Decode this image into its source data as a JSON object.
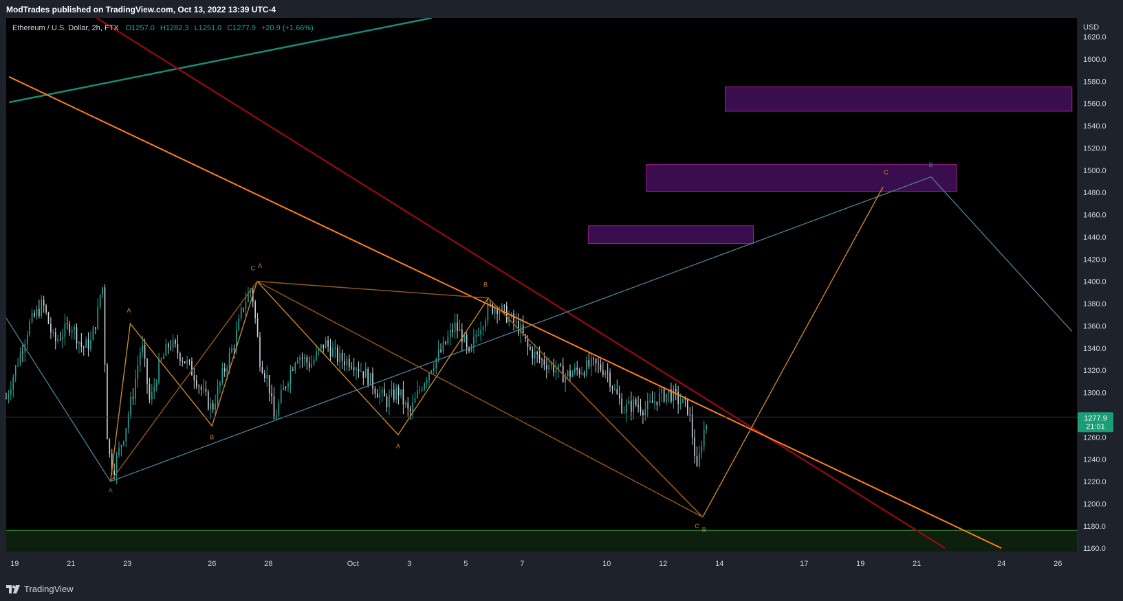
{
  "header": {
    "published_text": "ModTrades published on TradingView.com, Oct 13, 2022 13:39 UTC-4"
  },
  "footer": {
    "brand": "TradingView"
  },
  "colors": {
    "background": "#000000",
    "frame": "#1e222d",
    "up": "#26a69a",
    "down": "#d1d4dc",
    "steel_blue": "#4a7a8c",
    "orange": "#ff7f1a",
    "gold": "#c8882a",
    "dark_red": "#8b0a14",
    "teal": "#1a8a7a",
    "purple_fill": "#3a0e4e",
    "purple_border": "#a01e8c",
    "support_green": "#2f8a2f",
    "last_price_bg": "#1b9e77"
  },
  "chart_data": {
    "type": "candlestick",
    "symbol": "Ethereum / U.S. Dollar",
    "interval": "2h",
    "exchange": "FTX",
    "ohlc": {
      "open": "O1257.0",
      "high": "H1282.3",
      "low": "L1251.0",
      "close": "C1277.9",
      "change": "+20.9 (+1.66%)"
    },
    "currency": "USD",
    "y_ticks": [
      1620.0,
      1600.0,
      1580.0,
      1560.0,
      1540.0,
      1520.0,
      1500.0,
      1480.0,
      1460.0,
      1440.0,
      1420.0,
      1400.0,
      1380.0,
      1360.0,
      1340.0,
      1320.0,
      1300.0,
      1280.0,
      1260.0,
      1240.0,
      1220.0,
      1200.0,
      1180.0,
      1160.0
    ],
    "y_tick_labels": [
      "1620.0",
      "1600.0",
      "1580.0",
      "1560.0",
      "1540.0",
      "1520.0",
      "1500.0",
      "1480.0",
      "1460.0",
      "1440.0",
      "1420.0",
      "1400.0",
      "1380.0",
      "1360.0",
      "1340.0",
      "1320.0",
      "1300.0",
      "1260.0",
      "1240.0",
      "1220.0",
      "1200.0",
      "1180.0",
      "1160.0"
    ],
    "ylim": [
      1157,
      1637
    ],
    "x_ticks": [
      {
        "label": "19",
        "day": -11
      },
      {
        "label": "21",
        "day": -9
      },
      {
        "label": "23",
        "day": -7
      },
      {
        "label": "26",
        "day": -4
      },
      {
        "label": "28",
        "day": -2
      },
      {
        "label": "Oct",
        "day": 1
      },
      {
        "label": "3",
        "day": 3
      },
      {
        "label": "5",
        "day": 5
      },
      {
        "label": "7",
        "day": 7
      },
      {
        "label": "10",
        "day": 10
      },
      {
        "label": "12",
        "day": 12
      },
      {
        "label": "14",
        "day": 14
      },
      {
        "label": "17",
        "day": 17
      },
      {
        "label": "19",
        "day": 19
      },
      {
        "label": "21",
        "day": 21
      },
      {
        "label": "24",
        "day": 24
      },
      {
        "label": "26",
        "day": 26
      }
    ],
    "last_price": {
      "price": "1277.9",
      "countdown": "21:01",
      "value": 1277.9
    },
    "price_path": [
      [
        -11.3,
        1295
      ],
      [
        -10.5,
        1360
      ],
      [
        -10.0,
        1380
      ],
      [
        -9.6,
        1345
      ],
      [
        -9.0,
        1362
      ],
      [
        -8.6,
        1340
      ],
      [
        -8.3,
        1345
      ],
      [
        -8.0,
        1378
      ],
      [
        -7.9,
        1408
      ],
      [
        -7.7,
        1250
      ],
      [
        -7.5,
        1230
      ],
      [
        -7.1,
        1265
      ],
      [
        -6.8,
        1300
      ],
      [
        -6.5,
        1345
      ],
      [
        -6.2,
        1290
      ],
      [
        -5.9,
        1322
      ],
      [
        -5.5,
        1345
      ],
      [
        -5.0,
        1330
      ],
      [
        -4.6,
        1315
      ],
      [
        -4.3,
        1298
      ],
      [
        -4.0,
        1285
      ],
      [
        -3.6,
        1318
      ],
      [
        -3.2,
        1345
      ],
      [
        -2.9,
        1378
      ],
      [
        -2.6,
        1395
      ],
      [
        -2.3,
        1330
      ],
      [
        -2.0,
        1310
      ],
      [
        -1.8,
        1275
      ],
      [
        -1.5,
        1300
      ],
      [
        -1.0,
        1335
      ],
      [
        -0.5,
        1325
      ],
      [
        0.0,
        1345
      ],
      [
        0.5,
        1330
      ],
      [
        1.0,
        1328
      ],
      [
        1.5,
        1315
      ],
      [
        1.9,
        1300
      ],
      [
        2.2,
        1292
      ],
      [
        2.6,
        1302
      ],
      [
        3.0,
        1280
      ],
      [
        3.4,
        1305
      ],
      [
        3.8,
        1325
      ],
      [
        4.2,
        1340
      ],
      [
        4.6,
        1360
      ],
      [
        4.9,
        1350
      ],
      [
        5.1,
        1330
      ],
      [
        5.4,
        1355
      ],
      [
        5.8,
        1375
      ],
      [
        6.1,
        1378
      ],
      [
        6.5,
        1368
      ],
      [
        6.9,
        1358
      ],
      [
        7.2,
        1340
      ],
      [
        7.6,
        1330
      ],
      [
        8.0,
        1325
      ],
      [
        8.5,
        1315
      ],
      [
        9.0,
        1320
      ],
      [
        9.5,
        1325
      ],
      [
        10.0,
        1320
      ],
      [
        10.3,
        1300
      ],
      [
        10.6,
        1285
      ],
      [
        11.0,
        1290
      ],
      [
        11.4,
        1285
      ],
      [
        11.8,
        1295
      ],
      [
        12.2,
        1300
      ],
      [
        12.6,
        1292
      ],
      [
        12.9,
        1285
      ],
      [
        13.1,
        1250
      ],
      [
        13.2,
        1228
      ],
      [
        13.4,
        1262
      ],
      [
        13.6,
        1278
      ]
    ],
    "purple_zones": [
      {
        "x0": 9.35,
        "x1": 15.2,
        "y0": 1434,
        "y1": 1450
      },
      {
        "x0": 11.4,
        "x1": 22.4,
        "y0": 1481,
        "y1": 1505
      },
      {
        "x0": 14.2,
        "x1": 26.5,
        "y0": 1553,
        "y1": 1575
      }
    ],
    "support_zone": {
      "y0": 1157,
      "y1": 1176
    },
    "trendlines": [
      {
        "name": "teal",
        "x0": -11.2,
        "y0": 1561,
        "x1": 3.8,
        "y1": 1637
      },
      {
        "name": "dark-red",
        "x0": -8.1,
        "y0": 1637,
        "x1": 22.0,
        "y1": 1160
      },
      {
        "name": "orange",
        "x0": -11.2,
        "y0": 1584,
        "x1": 24.0,
        "y1": 1160
      },
      {
        "name": "blue-channel",
        "x0": -7.6,
        "y0": 1220,
        "x1": 21.5,
        "y1": 1494
      }
    ],
    "wave_paths": [
      {
        "name": "blue-wave",
        "points": [
          [
            -11.3,
            1367
          ],
          [
            -7.6,
            1220
          ],
          [
            -7.6,
            1220
          ]
        ],
        "color": "steel_blue"
      },
      {
        "name": "blue-projection",
        "points": [
          [
            21.5,
            1494
          ],
          [
            26.5,
            1355
          ]
        ],
        "color": "steel_blue"
      },
      {
        "name": "gold-zigzag-1",
        "points": [
          [
            -7.6,
            1220
          ],
          [
            -6.9,
            1362
          ],
          [
            -4.0,
            1270
          ],
          [
            -2.4,
            1400
          ]
        ],
        "color": "gold"
      },
      {
        "name": "gold-zigzag-2",
        "points": [
          [
            -2.4,
            1400
          ],
          [
            2.6,
            1262
          ],
          [
            5.8,
            1385
          ],
          [
            13.4,
            1188
          ]
        ],
        "color": "gold"
      },
      {
        "name": "gold-projection",
        "points": [
          [
            13.4,
            1188
          ],
          [
            19.8,
            1485
          ]
        ],
        "color": "gold"
      },
      {
        "name": "brown-zigzag",
        "points": [
          [
            -7.6,
            1220
          ],
          [
            -2.4,
            1400
          ],
          [
            13.4,
            1188
          ],
          [
            5.8,
            1385
          ],
          [
            -2.4,
            1400
          ]
        ],
        "color": "gold"
      }
    ],
    "wave_labels": [
      {
        "text": "A",
        "x": -7.6,
        "y": 1210,
        "color": "steel_blue"
      },
      {
        "text": "A",
        "x": -6.95,
        "y": 1372,
        "color": "gold"
      },
      {
        "text": "B",
        "x": -4.0,
        "y": 1258,
        "color": "gold"
      },
      {
        "text": "C",
        "x": -2.55,
        "y": 1410,
        "color": "gold"
      },
      {
        "text": "A",
        "x": -2.3,
        "y": 1412,
        "color": "gold"
      },
      {
        "text": "A",
        "x": 2.6,
        "y": 1250,
        "color": "gold"
      },
      {
        "text": "B",
        "x": 5.7,
        "y": 1395,
        "color": "gold"
      },
      {
        "text": "C",
        "x": 13.2,
        "y": 1178,
        "color": "gold"
      },
      {
        "text": "B",
        "x": 13.45,
        "y": 1175,
        "color": "gold"
      },
      {
        "text": "C",
        "x": 19.9,
        "y": 1496,
        "color": "gold"
      },
      {
        "text": "B",
        "x": 21.5,
        "y": 1503,
        "color": "steel_blue"
      }
    ]
  }
}
